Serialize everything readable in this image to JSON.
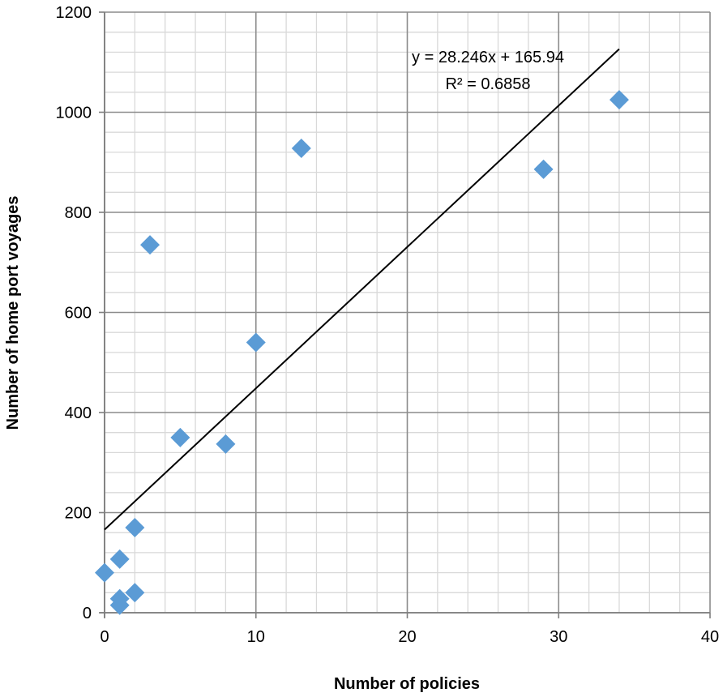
{
  "chart_data": {
    "type": "scatter",
    "title": "",
    "xlabel": "Number of policies",
    "ylabel": "Number of home port voyages",
    "xlim": [
      0,
      40
    ],
    "ylim": [
      0,
      1200
    ],
    "x_major_ticks": [
      0,
      10,
      20,
      30,
      40
    ],
    "y_major_ticks": [
      0,
      200,
      400,
      600,
      800,
      1000,
      1200
    ],
    "x_tick_labels": [
      "0",
      "10",
      "20",
      "30",
      "40"
    ],
    "y_tick_labels": [
      "0",
      "200",
      "400",
      "600",
      "800",
      "1000",
      "1200"
    ],
    "x_minor_step": 2,
    "y_minor_step": 40,
    "grid": true,
    "legend": "none",
    "series": [
      {
        "marker": "diamond",
        "color": "#5b9bd5",
        "points": [
          {
            "x": 0,
            "y": 80
          },
          {
            "x": 1,
            "y": 107
          },
          {
            "x": 1,
            "y": 28
          },
          {
            "x": 1,
            "y": 15
          },
          {
            "x": 2,
            "y": 170
          },
          {
            "x": 2,
            "y": 40
          },
          {
            "x": 3,
            "y": 735
          },
          {
            "x": 5,
            "y": 350
          },
          {
            "x": 8,
            "y": 337
          },
          {
            "x": 10,
            "y": 540
          },
          {
            "x": 13,
            "y": 928
          },
          {
            "x": 29,
            "y": 886
          },
          {
            "x": 34,
            "y": 1025
          }
        ]
      }
    ],
    "trendline": {
      "type": "linear",
      "slope": 28.246,
      "intercept": 165.94,
      "x_range": [
        0,
        34
      ],
      "color": "#000000",
      "equation_label": "y = 28.246x + 165.94",
      "r2_label": "R² = 0.6858"
    }
  }
}
